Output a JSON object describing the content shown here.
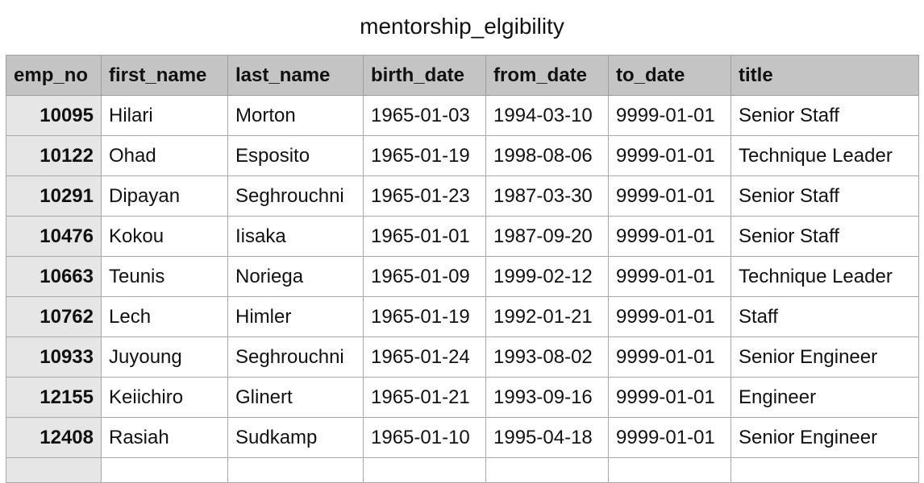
{
  "table_title": "mentorship_elgibility",
  "columns": [
    "emp_no",
    "first_name",
    "last_name",
    "birth_date",
    "from_date",
    "to_date",
    "title"
  ],
  "rows": [
    [
      "10095",
      "Hilari",
      "Morton",
      "1965-01-03",
      "1994-03-10",
      "9999-01-01",
      "Senior Staff"
    ],
    [
      "10122",
      "Ohad",
      "Esposito",
      "1965-01-19",
      "1998-08-06",
      "9999-01-01",
      "Technique Leader"
    ],
    [
      "10291",
      "Dipayan",
      "Seghrouchni",
      "1965-01-23",
      "1987-03-30",
      "9999-01-01",
      "Senior Staff"
    ],
    [
      "10476",
      "Kokou",
      "Iisaka",
      "1965-01-01",
      "1987-09-20",
      "9999-01-01",
      "Senior Staff"
    ],
    [
      "10663",
      "Teunis",
      "Noriega",
      "1965-01-09",
      "1999-02-12",
      "9999-01-01",
      "Technique Leader"
    ],
    [
      "10762",
      "Lech",
      "Himler",
      "1965-01-19",
      "1992-01-21",
      "9999-01-01",
      "Staff"
    ],
    [
      "10933",
      "Juyoung",
      "Seghrouchni",
      "1965-01-24",
      "1993-08-02",
      "9999-01-01",
      "Senior Engineer"
    ],
    [
      "12155",
      "Keiichiro",
      "Glinert",
      "1965-01-21",
      "1993-09-16",
      "9999-01-01",
      "Engineer"
    ],
    [
      "12408",
      "Rasiah",
      "Sudkamp",
      "1965-01-10",
      "1995-04-18",
      "9999-01-01",
      "Senior Engineer"
    ]
  ]
}
